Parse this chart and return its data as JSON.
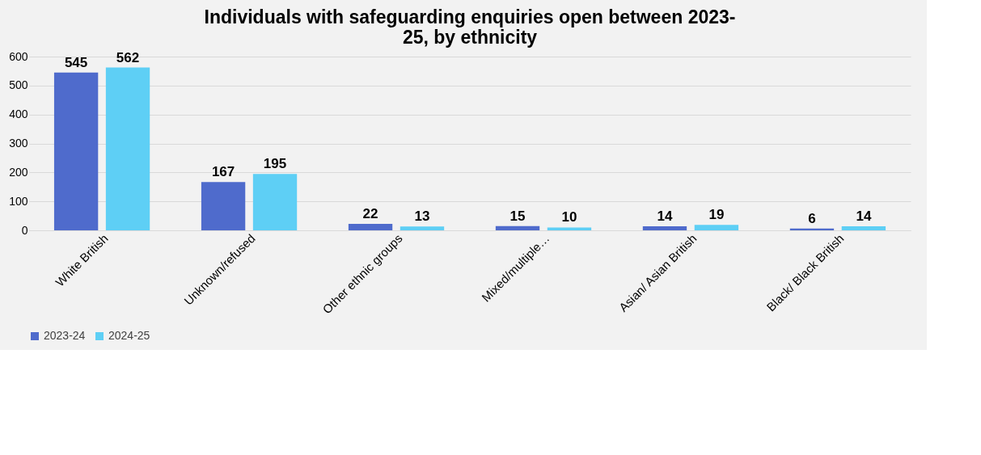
{
  "chart_data": {
    "type": "bar",
    "title": "Individuals with safeguarding enquiries open between 2023-25, by ethnicity",
    "categories": [
      "White British",
      "Unknown/refused",
      "Other ethnic groups",
      "Mixed/multiple…",
      "Asian/ Asian British",
      "Black/ Black British"
    ],
    "series": [
      {
        "name": "2023-24",
        "color": "#4f6bcc",
        "values": [
          545,
          167,
          22,
          15,
          14,
          6
        ]
      },
      {
        "name": "2024-25",
        "color": "#5ecff5",
        "values": [
          562,
          195,
          13,
          10,
          19,
          14
        ]
      }
    ],
    "ylim": [
      0,
      600
    ],
    "yticks": [
      0,
      100,
      200,
      300,
      400,
      500,
      600
    ],
    "grid": "y",
    "legend": "bottom",
    "data_labels": true
  }
}
